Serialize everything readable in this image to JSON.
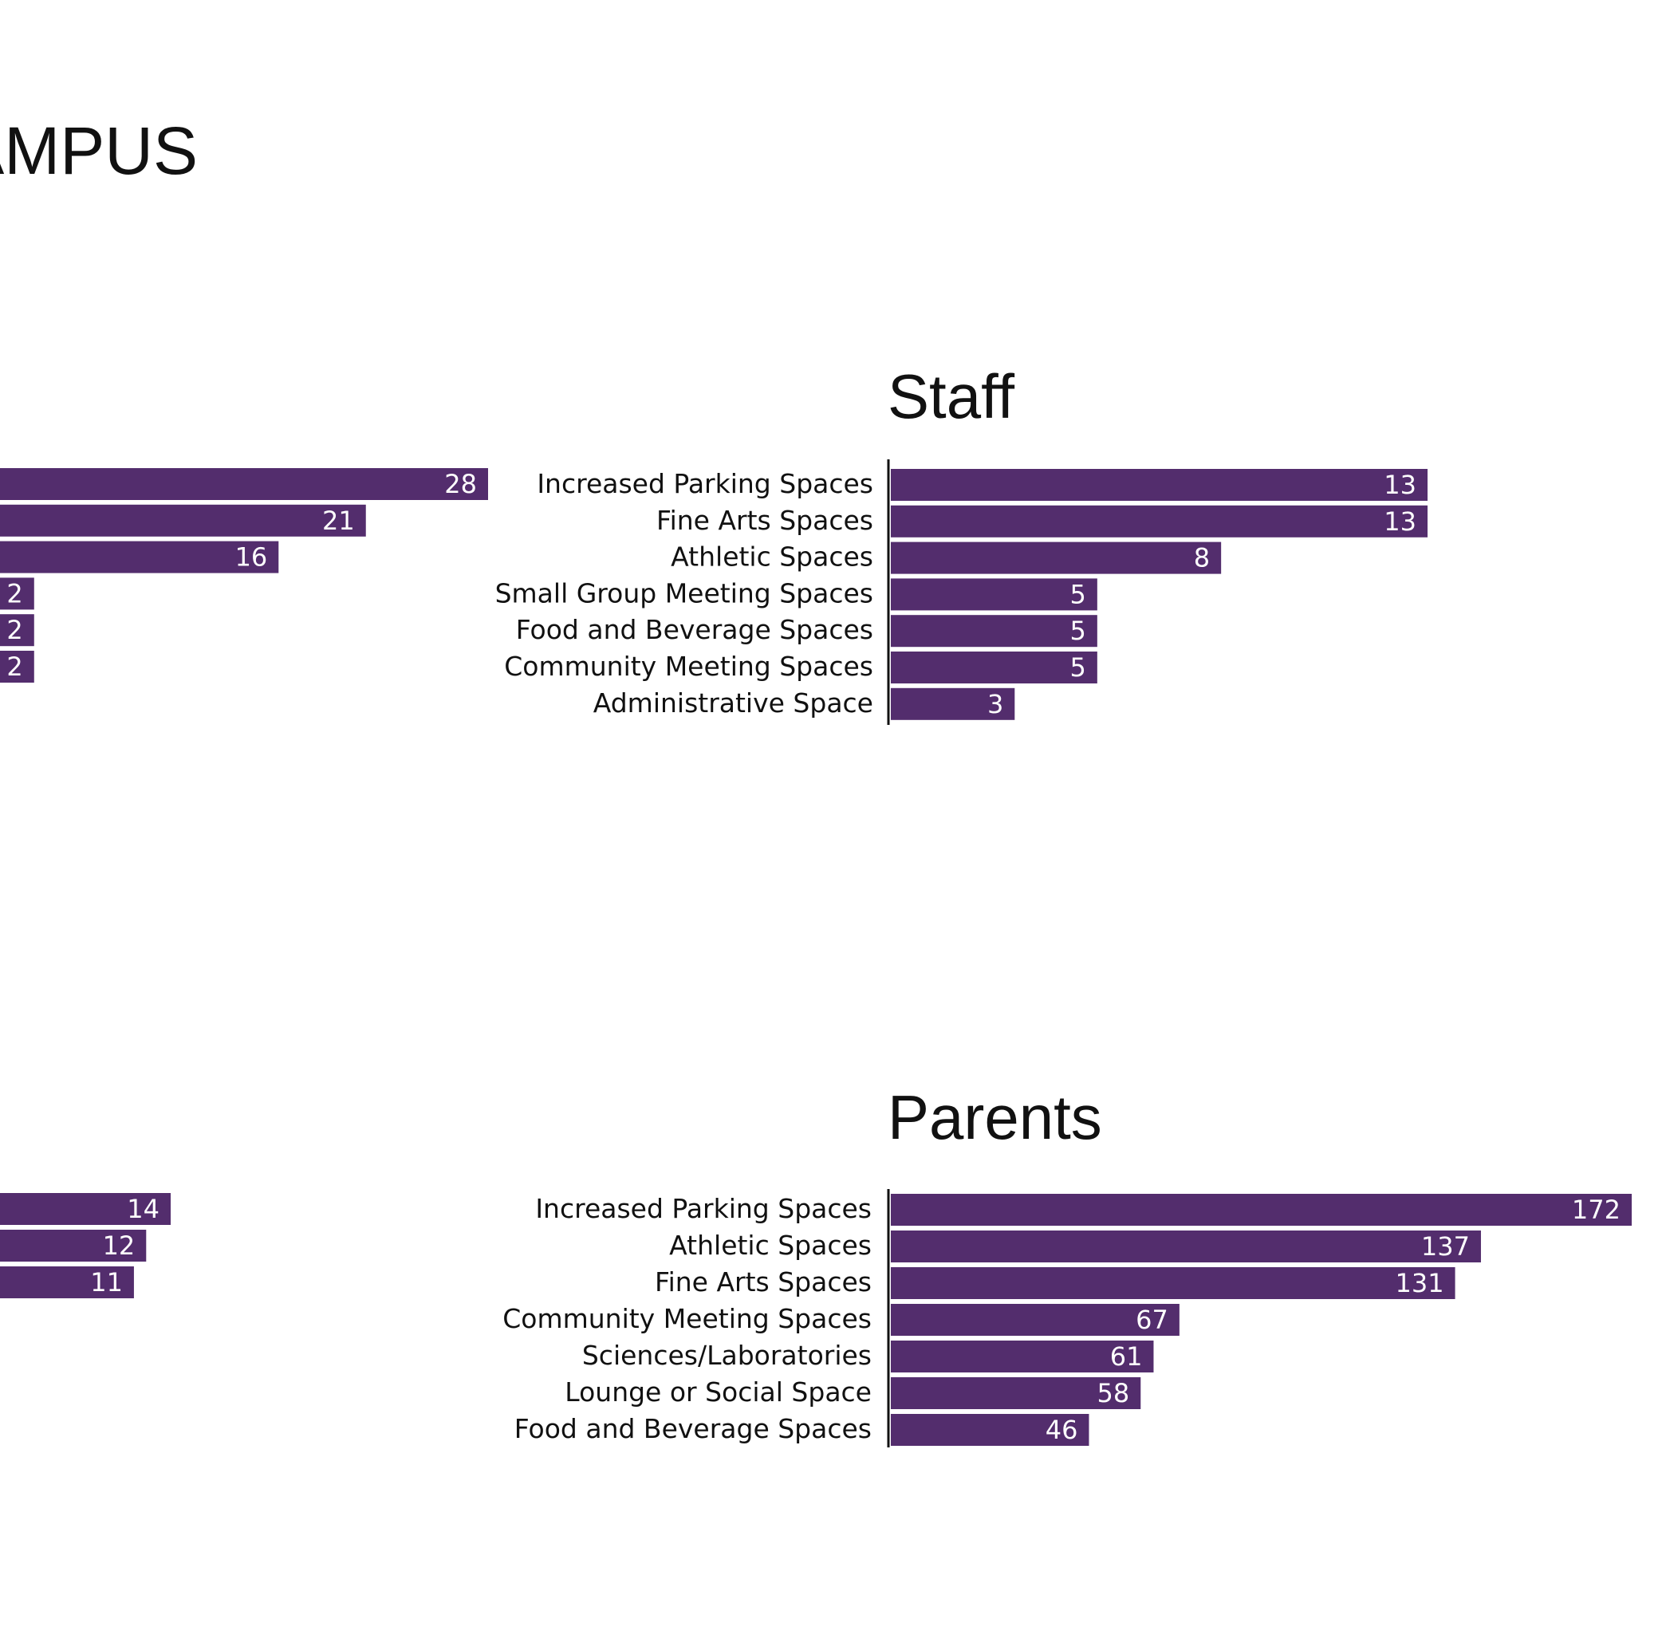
{
  "page": {
    "title": "AMPUS",
    "bar_color": "#532d6d",
    "axis_color": "#111111",
    "text_color": "#111111",
    "value_color": "#ffffff"
  },
  "chart_data": [
    {
      "type": "bar",
      "orientation": "horizontal",
      "title": "",
      "categories": [
        "",
        "",
        "",
        "",
        "",
        ""
      ],
      "values": [
        28,
        21,
        16,
        2,
        2,
        2
      ],
      "clipped": "left",
      "xlim": [
        0,
        28
      ]
    },
    {
      "type": "bar",
      "orientation": "horizontal",
      "title": "Staff",
      "categories": [
        "Increased Parking Spaces",
        "Fine Arts Spaces",
        "Athletic Spaces",
        "Small Group Meeting Spaces",
        "Food and Beverage Spaces",
        "Community Meeting Spaces",
        "Administrative Space"
      ],
      "values": [
        13,
        13,
        8,
        5,
        5,
        5,
        3
      ],
      "xlim": [
        0,
        13
      ]
    },
    {
      "type": "bar",
      "orientation": "horizontal",
      "title": "",
      "categories": [
        "",
        "",
        ""
      ],
      "values": [
        14,
        12,
        11
      ],
      "clipped": "left",
      "xlim": [
        0,
        14
      ]
    },
    {
      "type": "bar",
      "orientation": "horizontal",
      "title": "Parents",
      "categories": [
        "Increased Parking Spaces",
        "Athletic Spaces",
        "Fine Arts Spaces",
        "Community Meeting Spaces",
        "Sciences/Laboratories",
        "Lounge or Social Space",
        "Food and Beverage Spaces"
      ],
      "values": [
        172,
        137,
        131,
        67,
        61,
        58,
        46
      ],
      "xlim": [
        0,
        172
      ]
    }
  ]
}
